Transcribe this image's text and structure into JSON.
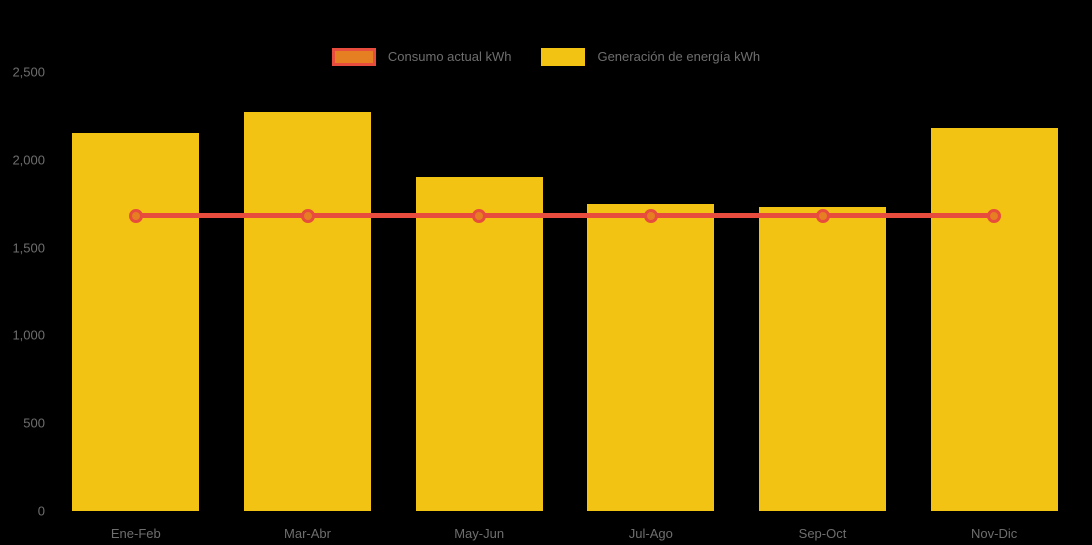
{
  "colors": {
    "background": "#000000",
    "axis_text": "#6E6E6E",
    "bar_fill": "#F2C312",
    "line_stroke": "#E74C3C",
    "marker_fill": "#E67E22"
  },
  "legend": {
    "items": [
      {
        "label": "Consumo actual kWh",
        "swatch_fill": "#E67E22",
        "swatch_border": "#E74C3C"
      },
      {
        "label": "Generación de energía kWh",
        "swatch_fill": "#F2C312",
        "swatch_border": "#F2C312"
      }
    ]
  },
  "chart_data": {
    "type": "bar",
    "title": "",
    "xlabel": "",
    "ylabel": "",
    "categories": [
      "Ene-Feb",
      "Mar-Abr",
      "May-Jun",
      "Jul-Ago",
      "Sep-Oct",
      "Nov-Dic"
    ],
    "series": [
      {
        "name": "Generación de energía kWh",
        "type": "bar",
        "color": "#F2C312",
        "values": [
          2150,
          2270,
          1900,
          1750,
          1730,
          2180
        ]
      },
      {
        "name": "Consumo actual kWh",
        "type": "line",
        "color": "#E74C3C",
        "marker_color": "#E67E22",
        "values": [
          1680,
          1680,
          1680,
          1680,
          1680,
          1680
        ]
      }
    ],
    "ylim": [
      0,
      2500
    ],
    "yticks": [
      0,
      500,
      1000,
      1500,
      2000,
      2500
    ],
    "ytick_labels": [
      "0",
      "500",
      "1,000",
      "1,500",
      "2,000",
      "2,500"
    ],
    "grid": false,
    "legend_position": "top-center"
  }
}
